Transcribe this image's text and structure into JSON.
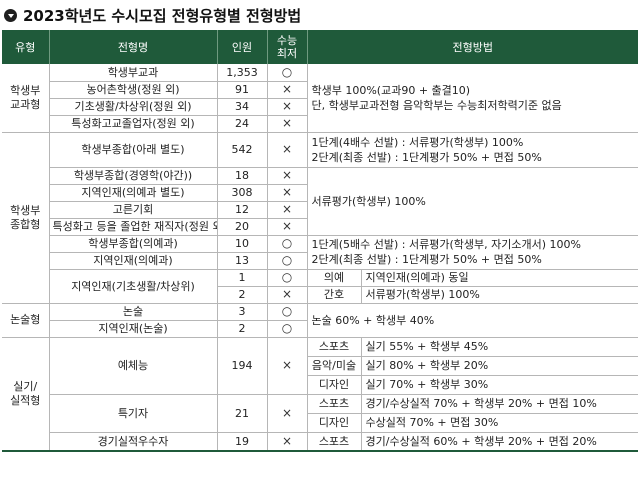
{
  "title": "2023학년도 수시모집 전형유형별 전형방법",
  "headers": {
    "type": "유형",
    "name": "전형명",
    "quota": "인원",
    "csat1": "수능",
    "csat2": "최저",
    "method": "전형방법"
  },
  "symbols": {
    "yes": "○",
    "no": "×"
  },
  "groups": {
    "g1": "학생부\n교과형",
    "g2": "학생부\n종합형",
    "g3": "논술형",
    "g4": "실기/\n실적형"
  },
  "rows": {
    "r1": {
      "name": "학생부교과",
      "quota": "1,353"
    },
    "r2": {
      "name": "농어촌학생(정원 외)",
      "quota": "91"
    },
    "r3": {
      "name": "기초생활/차상위(정원 외)",
      "quota": "34"
    },
    "r4": {
      "name": "특성화고교졸업자(정원 외)",
      "quota": "24"
    },
    "r5": {
      "name": "학생부종합(아래 별도)",
      "quota": "542"
    },
    "r6": {
      "name": "학생부종합(경영학(야간))",
      "quota": "18"
    },
    "r7": {
      "name": "지역인재(의예과 별도)",
      "quota": "308"
    },
    "r8": {
      "name": "고른기회",
      "quota": "12"
    },
    "r9": {
      "name": "특성화고 등을 졸업한 재직자(정원 외)",
      "quota": "20"
    },
    "r10": {
      "name": "학생부종합(의예과)",
      "quota": "10"
    },
    "r11": {
      "name": "지역인재(의예과)",
      "quota": "13"
    },
    "r12": {
      "name": "지역인재(기초생활/차상위)",
      "quota_a": "1",
      "quota_b": "2"
    },
    "r13": {
      "name": "논술",
      "quota": "3"
    },
    "r14": {
      "name": "지역인재(논술)",
      "quota": "2"
    },
    "r15": {
      "name": "예체능",
      "quota": "194"
    },
    "r16": {
      "name": "특기자",
      "quota": "21"
    },
    "r17": {
      "name": "경기실적우수자",
      "quota": "19"
    }
  },
  "methods": {
    "m1_line1": "학생부 100%(교과90 + 출결10)",
    "m1_line2": "단, 학생부교과전형 음악학부는 수능최저학력기준 없음",
    "m2_line1": "1단계(4배수 선발) : 서류평가(학생부) 100%",
    "m2_line2": "2단계(최종 선발) : 1단계평가 50% + 면접 50%",
    "m3": "서류평가(학생부) 100%",
    "m4_line1": "1단계(5배수 선발) : 서류평가(학생부, 자기소개서) 100%",
    "m4_line2": "2단계(최종 선발) : 1단계평가 50% + 면접 50%",
    "m5_k1": "의예",
    "m5_v1": "지역인재(의예과) 동일",
    "m5_k2": "간호",
    "m5_v2": "서류평가(학생부) 100%",
    "m6": "논술 60% + 학생부 40%",
    "m7_k1": "스포츠",
    "m7_v1": "실기 55% + 학생부 45%",
    "m7_k2": "음악/미술",
    "m7_v2": "실기 80% + 학생부 20%",
    "m7_k3": "디자인",
    "m7_v3": "실기 70% + 학생부 30%",
    "m8_k1": "스포츠",
    "m8_v1": "경기/수상실적 70% + 학생부 20% + 면접 10%",
    "m8_k2": "디자인",
    "m8_v2": "수상실적 70% + 면접 30%",
    "m9_k1": "스포츠",
    "m9_v1": "경기/수상실적 60% + 학생부 20% + 면접 20%"
  }
}
